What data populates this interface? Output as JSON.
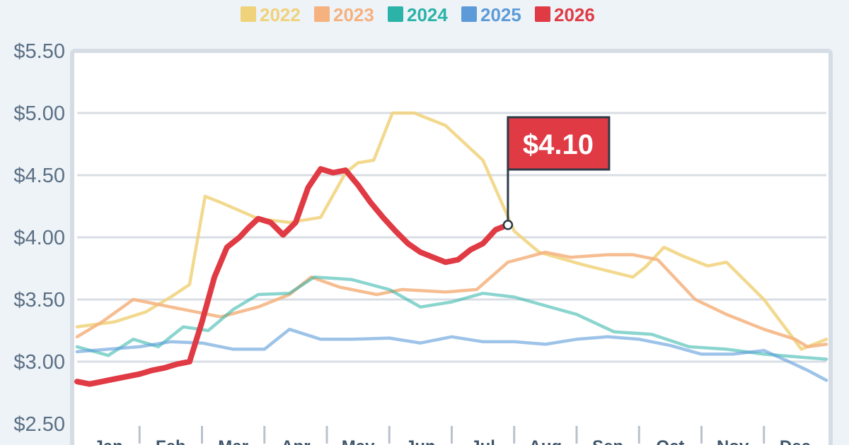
{
  "chart_data": {
    "type": "line",
    "xlabel": "",
    "ylabel": "",
    "y_ticks": [
      "$2.50",
      "$3.00",
      "$3.50",
      "$4.00",
      "$4.50",
      "$5.00",
      "$5.50"
    ],
    "y_tick_values": [
      2.5,
      3.0,
      3.5,
      4.0,
      4.5,
      5.0,
      5.5
    ],
    "ylim": [
      2.5,
      5.5
    ],
    "x_range_months": [
      0,
      12
    ],
    "month_labels": [
      "Jan",
      "Feb",
      "Mar",
      "Apr",
      "May",
      "Jun",
      "Jul",
      "Aug",
      "Sep",
      "Oct",
      "Nov",
      "Dec"
    ],
    "grid": "horizontal",
    "legend_position": "top",
    "callout": {
      "label": "$4.10",
      "month": 6.9,
      "value": 4.1,
      "color": "#e03a44"
    },
    "series": [
      {
        "name": "2022",
        "color": "#f0d27a",
        "opacity": 0.85,
        "x": [
          0,
          0.6,
          1.1,
          1.5,
          1.8,
          2.05,
          2.3,
          2.9,
          3.4,
          3.9,
          4.3,
          4.5,
          4.75,
          5.05,
          5.4,
          5.9,
          6.5,
          7.0,
          7.4,
          8.1,
          8.9,
          9.1,
          9.4,
          9.7,
          10.1,
          10.4,
          11.0,
          11.6,
          12.0
        ],
        "values": [
          3.28,
          3.32,
          3.4,
          3.52,
          3.62,
          4.33,
          4.28,
          4.15,
          4.12,
          4.16,
          4.52,
          4.6,
          4.62,
          5.0,
          5.0,
          4.9,
          4.62,
          4.05,
          3.88,
          3.78,
          3.68,
          3.76,
          3.92,
          3.85,
          3.77,
          3.8,
          3.5,
          3.1,
          3.18
        ]
      },
      {
        "name": "2023",
        "color": "#f5b17e",
        "opacity": 0.85,
        "x": [
          0,
          0.4,
          0.9,
          1.3,
          1.7,
          2.3,
          2.9,
          3.4,
          3.75,
          4.2,
          4.8,
          5.2,
          5.9,
          6.4,
          6.9,
          7.5,
          7.9,
          8.5,
          8.9,
          9.3,
          9.9,
          10.4,
          11.0,
          11.5,
          11.7,
          12.0
        ],
        "values": [
          3.2,
          3.32,
          3.5,
          3.46,
          3.42,
          3.36,
          3.44,
          3.54,
          3.68,
          3.6,
          3.54,
          3.58,
          3.56,
          3.58,
          3.8,
          3.88,
          3.84,
          3.86,
          3.86,
          3.82,
          3.5,
          3.38,
          3.26,
          3.18,
          3.12,
          3.14
        ]
      },
      {
        "name": "2024",
        "color": "#2bb3a8",
        "opacity": 0.55,
        "x": [
          0,
          0.5,
          0.9,
          1.3,
          1.7,
          2.1,
          2.5,
          2.9,
          3.4,
          3.8,
          4.4,
          5.0,
          5.5,
          6.0,
          6.5,
          7.0,
          7.5,
          8.0,
          8.6,
          9.2,
          9.8,
          10.4,
          11.0,
          11.5,
          12.0
        ],
        "values": [
          3.12,
          3.05,
          3.18,
          3.12,
          3.28,
          3.25,
          3.42,
          3.54,
          3.55,
          3.68,
          3.66,
          3.58,
          3.44,
          3.48,
          3.55,
          3.52,
          3.45,
          3.38,
          3.24,
          3.22,
          3.12,
          3.1,
          3.06,
          3.04,
          3.02
        ]
      },
      {
        "name": "2025",
        "color": "#5c9bd8",
        "opacity": 0.6,
        "x": [
          0,
          0.5,
          1.0,
          1.5,
          2.0,
          2.5,
          3.0,
          3.4,
          3.9,
          4.4,
          5.0,
          5.5,
          6.0,
          6.5,
          7.0,
          7.5,
          8.0,
          8.5,
          9.0,
          9.5,
          10.0,
          10.5,
          11.0,
          11.4,
          11.7,
          12.0
        ],
        "values": [
          3.08,
          3.1,
          3.12,
          3.16,
          3.15,
          3.1,
          3.1,
          3.26,
          3.18,
          3.18,
          3.19,
          3.15,
          3.2,
          3.16,
          3.16,
          3.14,
          3.18,
          3.2,
          3.18,
          3.13,
          3.06,
          3.06,
          3.09,
          3.0,
          2.93,
          2.85
        ]
      },
      {
        "name": "2026",
        "color": "#e03a44",
        "opacity": 1,
        "x": [
          0,
          0.2,
          0.4,
          0.6,
          0.8,
          1.0,
          1.2,
          1.4,
          1.6,
          1.8,
          2.0,
          2.2,
          2.4,
          2.6,
          2.75,
          2.9,
          3.1,
          3.3,
          3.5,
          3.7,
          3.9,
          4.1,
          4.3,
          4.5,
          4.7,
          4.9,
          5.1,
          5.3,
          5.5,
          5.7,
          5.9,
          6.1,
          6.3,
          6.5,
          6.7,
          6.9
        ],
        "values": [
          2.84,
          2.82,
          2.84,
          2.86,
          2.88,
          2.9,
          2.93,
          2.95,
          2.98,
          3.0,
          3.32,
          3.68,
          3.92,
          4.0,
          4.08,
          4.15,
          4.12,
          4.02,
          4.12,
          4.4,
          4.55,
          4.52,
          4.54,
          4.42,
          4.28,
          4.16,
          4.05,
          3.95,
          3.88,
          3.84,
          3.8,
          3.82,
          3.9,
          3.95,
          4.06,
          4.1
        ]
      }
    ]
  }
}
